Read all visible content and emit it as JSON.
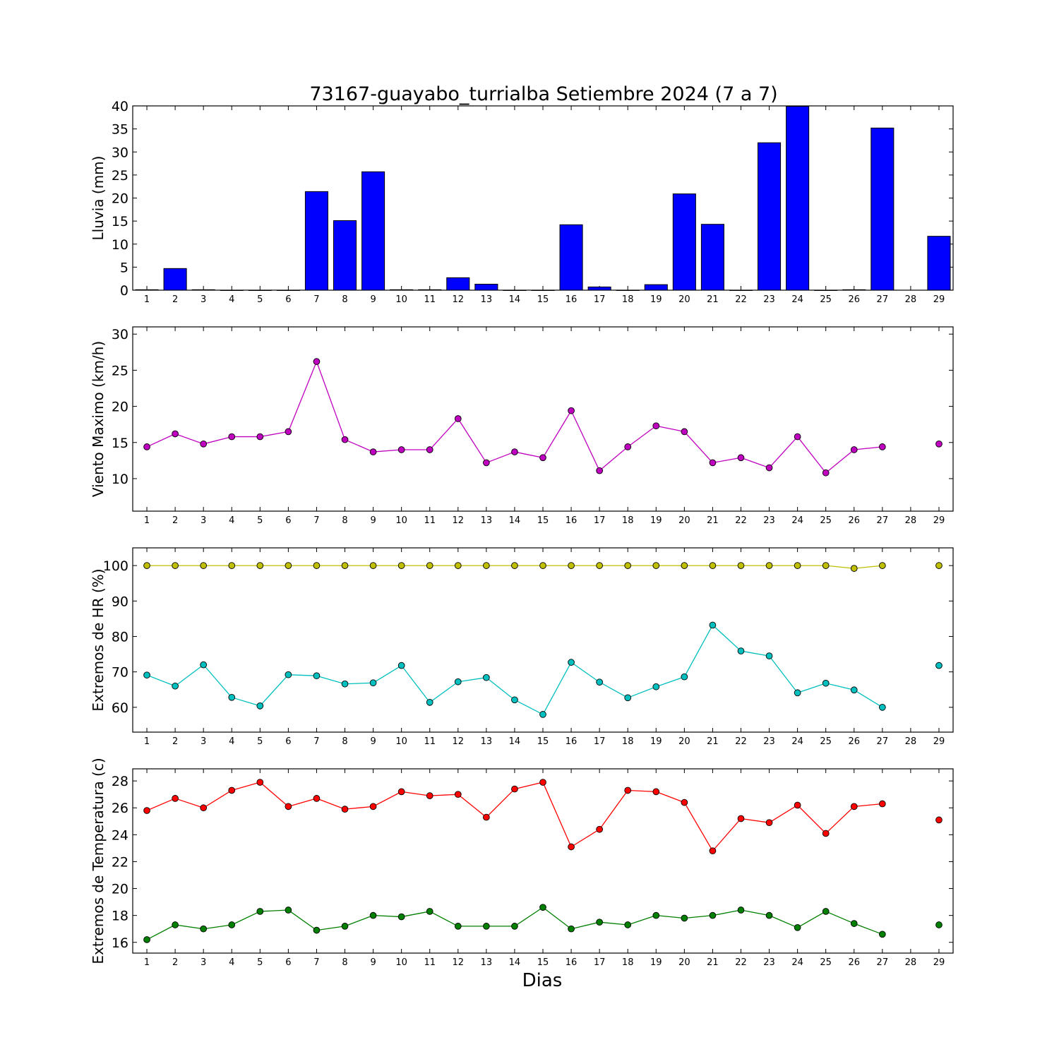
{
  "title": "73167-guayabo_turrialba Setiembre 2024  (7 a 7)",
  "xlabel": "Dias",
  "chart_data": [
    {
      "type": "bar",
      "ylabel": "Lluvia (mm)",
      "ylim": [
        0,
        40
      ],
      "yticks": [
        0,
        5,
        10,
        15,
        20,
        25,
        30,
        35,
        40
      ],
      "x": [
        1,
        2,
        3,
        4,
        5,
        6,
        7,
        8,
        9,
        10,
        11,
        12,
        13,
        14,
        15,
        16,
        17,
        18,
        19,
        20,
        21,
        22,
        23,
        24,
        25,
        26,
        27,
        28,
        29
      ],
      "xlim": [
        0.5,
        29.5
      ],
      "series": [
        {
          "color": "#0000ff",
          "values": [
            0.1,
            4.7,
            0.1,
            0,
            0,
            0,
            21.4,
            15.1,
            25.7,
            0.1,
            0.1,
            2.7,
            1.3,
            0,
            0,
            14.2,
            0.7,
            0,
            1.2,
            20.9,
            14.3,
            0,
            32.0,
            39.9,
            0,
            0.1,
            35.2,
            null,
            11.7
          ]
        }
      ]
    },
    {
      "type": "line",
      "ylabel": "Viento Maximo (km/h)",
      "ylim": [
        5.5,
        31
      ],
      "yticks": [
        10,
        15,
        20,
        25,
        30
      ],
      "x": [
        1,
        2,
        3,
        4,
        5,
        6,
        7,
        8,
        9,
        10,
        11,
        12,
        13,
        14,
        15,
        16,
        17,
        18,
        19,
        20,
        21,
        22,
        23,
        24,
        25,
        26,
        27,
        28,
        29
      ],
      "xlim": [
        0.5,
        29.5
      ],
      "series": [
        {
          "color": "#bf00bf",
          "values": [
            14.4,
            16.2,
            14.8,
            15.8,
            15.8,
            16.5,
            26.2,
            15.4,
            13.7,
            14.0,
            14.0,
            18.3,
            12.2,
            13.7,
            12.9,
            19.4,
            11.1,
            14.4,
            17.3,
            16.5,
            12.2,
            12.9,
            11.5,
            15.8,
            10.8,
            14.0,
            14.4,
            null,
            14.8
          ]
        }
      ]
    },
    {
      "type": "line",
      "ylabel": "Extremos de HR (%)",
      "ylim": [
        53,
        105
      ],
      "yticks": [
        60,
        70,
        80,
        90,
        100
      ],
      "x": [
        1,
        2,
        3,
        4,
        5,
        6,
        7,
        8,
        9,
        10,
        11,
        12,
        13,
        14,
        15,
        16,
        17,
        18,
        19,
        20,
        21,
        22,
        23,
        24,
        25,
        26,
        27,
        28,
        29
      ],
      "xlim": [
        0.5,
        29.5
      ],
      "series": [
        {
          "color": "#bfbf00",
          "values": [
            100,
            100,
            100,
            100,
            100,
            100,
            100,
            100,
            100,
            100,
            100,
            100,
            100,
            100,
            100,
            100,
            100,
            100,
            100,
            100,
            100,
            100,
            100,
            100,
            100,
            99.2,
            100,
            null,
            100
          ]
        },
        {
          "color": "#00bfbf",
          "values": [
            69.1,
            66.0,
            72.0,
            62.8,
            60.4,
            69.2,
            68.9,
            66.6,
            66.9,
            71.8,
            61.4,
            67.2,
            68.4,
            62.1,
            58.0,
            72.7,
            67.1,
            62.7,
            65.8,
            68.6,
            83.2,
            75.9,
            74.5,
            64.1,
            66.8,
            64.9,
            60.0,
            null,
            71.8
          ]
        }
      ]
    },
    {
      "type": "line",
      "ylabel": "Extremos de Temperatura (c)",
      "ylim": [
        15.2,
        28.9
      ],
      "yticks": [
        16,
        18,
        20,
        22,
        24,
        26,
        28
      ],
      "x": [
        1,
        2,
        3,
        4,
        5,
        6,
        7,
        8,
        9,
        10,
        11,
        12,
        13,
        14,
        15,
        16,
        17,
        18,
        19,
        20,
        21,
        22,
        23,
        24,
        25,
        26,
        27,
        28,
        29
      ],
      "xlim": [
        0.5,
        29.5
      ],
      "series": [
        {
          "color": "#ff0000",
          "values": [
            25.8,
            26.7,
            26.0,
            27.3,
            27.9,
            26.1,
            26.7,
            25.9,
            26.1,
            27.2,
            26.9,
            27.0,
            25.3,
            27.4,
            27.9,
            23.1,
            24.4,
            27.3,
            27.2,
            26.4,
            22.8,
            25.2,
            24.9,
            26.2,
            24.1,
            26.1,
            26.3,
            null,
            25.1
          ]
        },
        {
          "color": "#007f00",
          "values": [
            16.2,
            17.3,
            17.0,
            17.3,
            18.3,
            18.4,
            16.9,
            17.2,
            18.0,
            17.9,
            18.3,
            17.2,
            17.2,
            17.2,
            18.6,
            17.0,
            17.5,
            17.3,
            18.0,
            17.8,
            18.0,
            18.4,
            18.0,
            17.1,
            18.3,
            17.4,
            16.6,
            null,
            17.3
          ]
        }
      ]
    }
  ]
}
